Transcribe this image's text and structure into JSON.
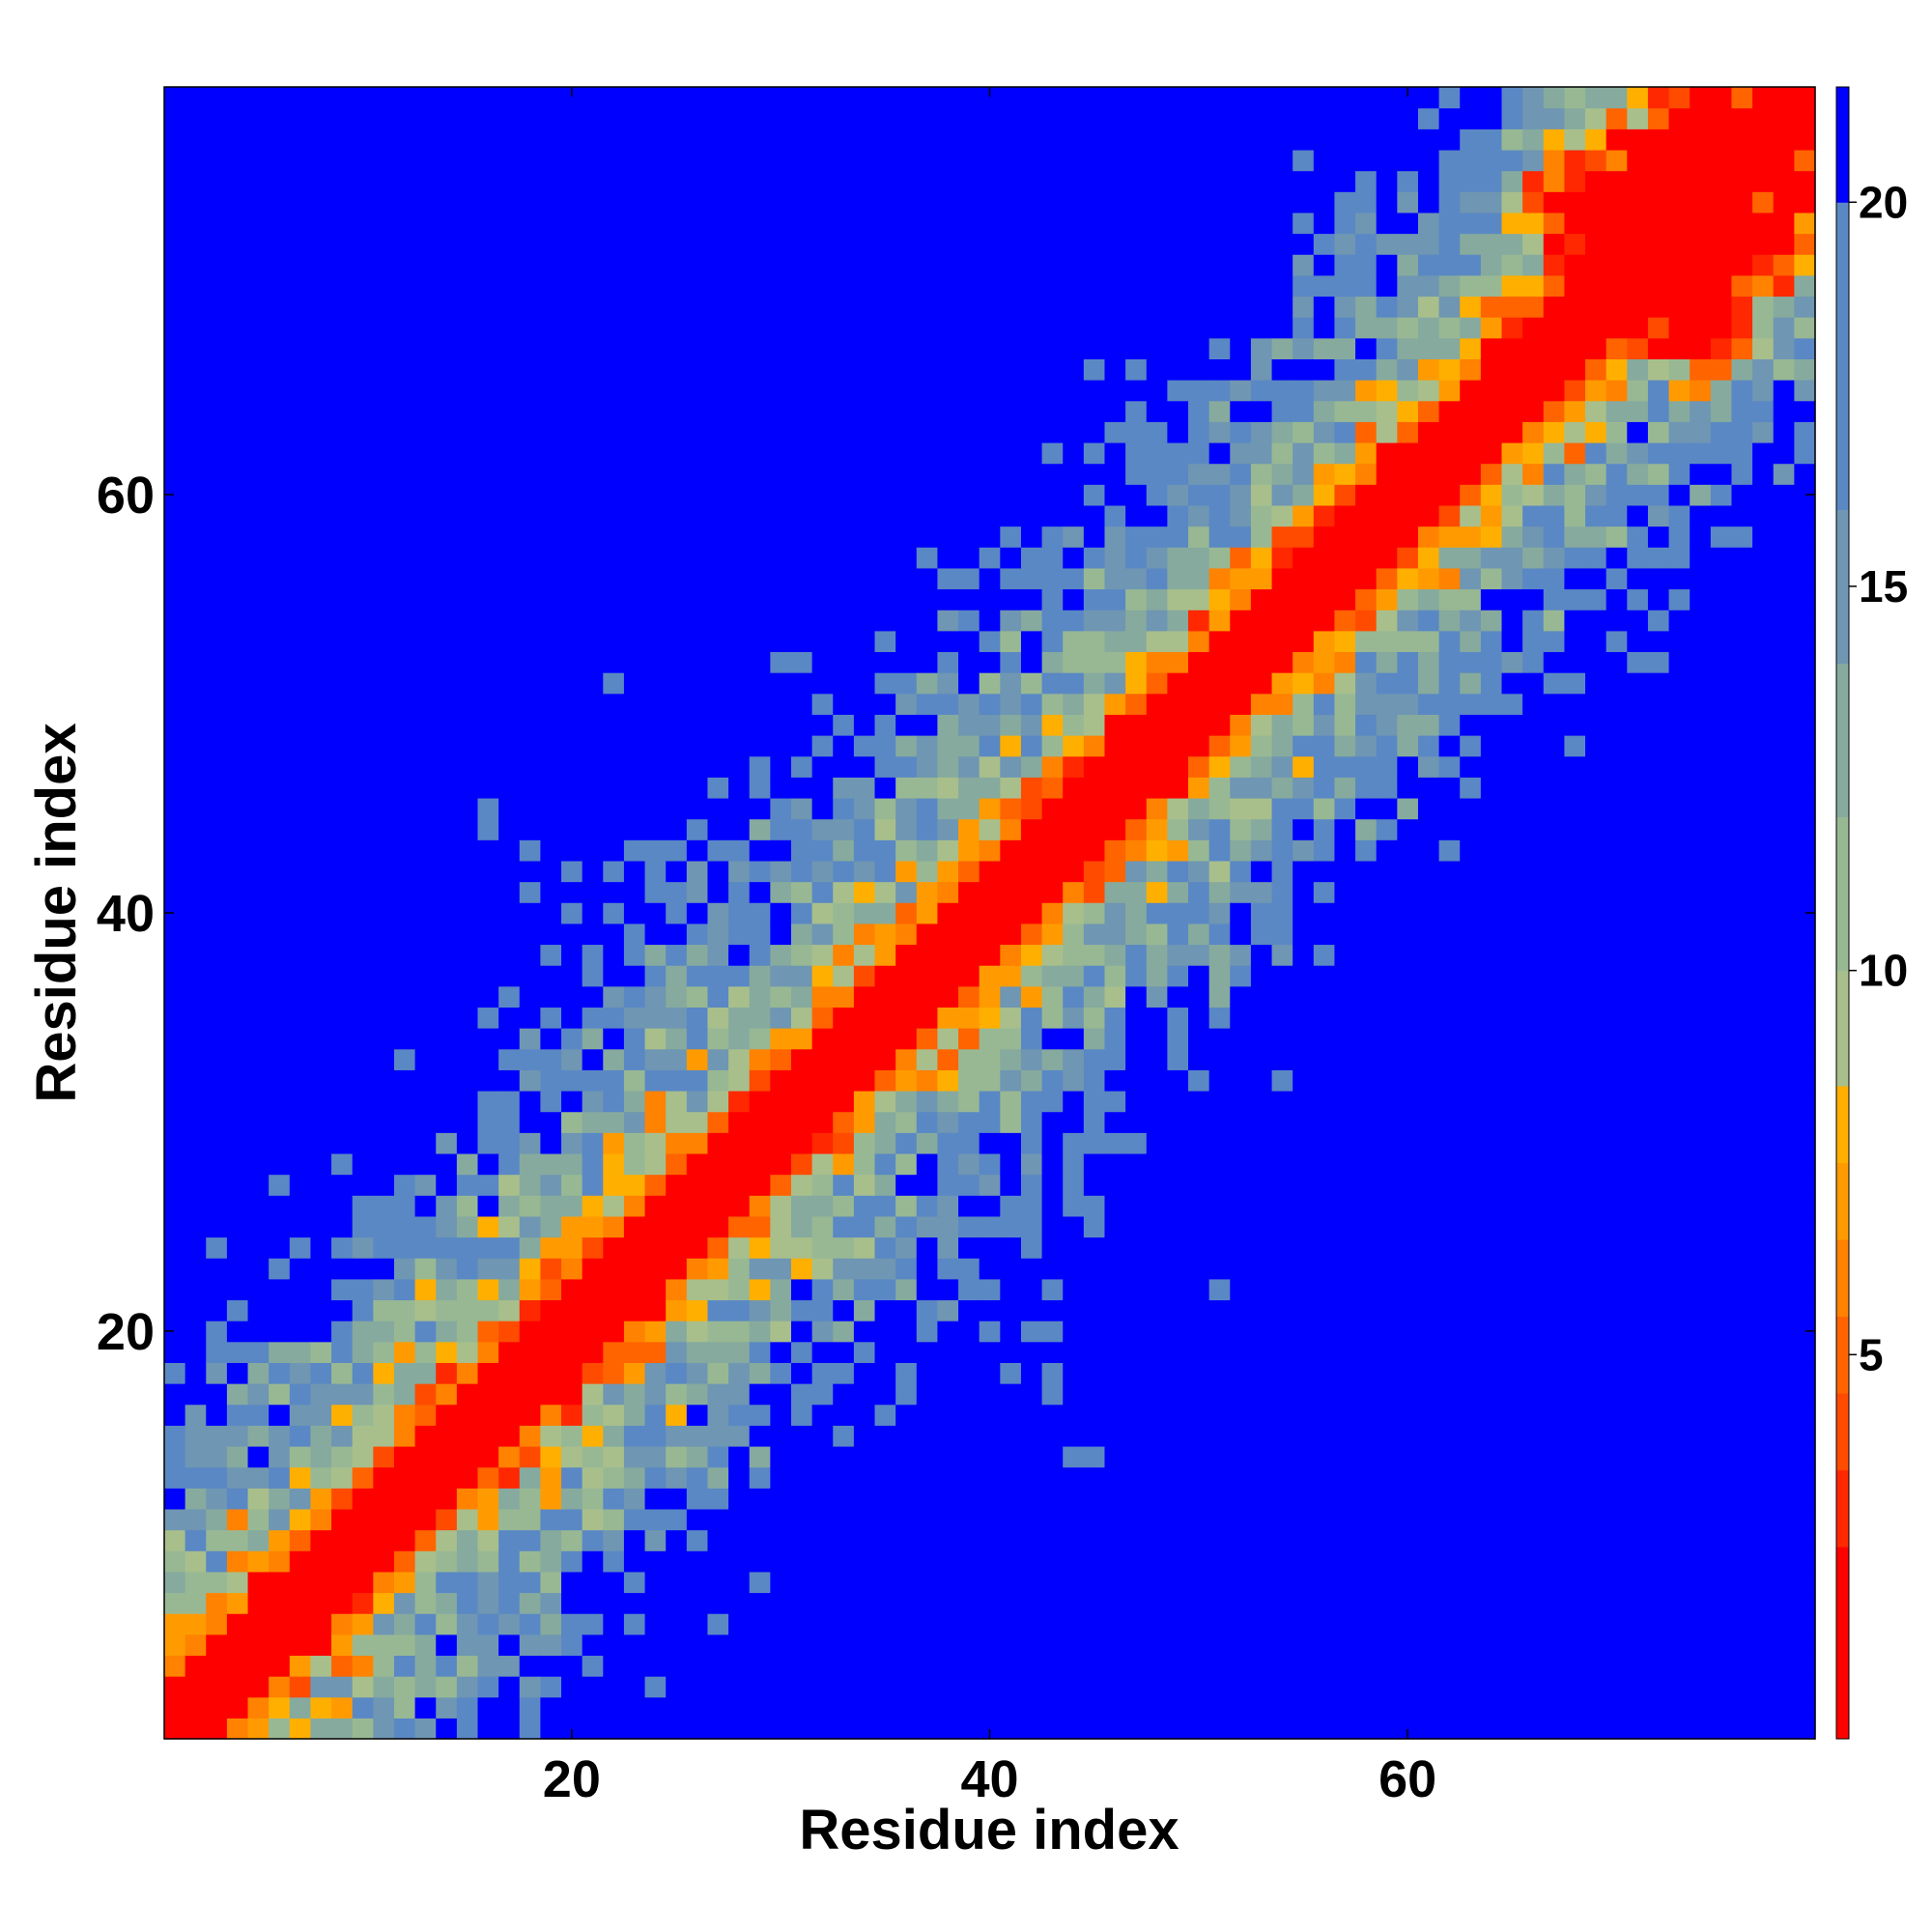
{
  "chart_data": {
    "type": "heatmap",
    "title": "",
    "xlabel": "Residue index",
    "ylabel": "Residue index",
    "n_residues": 79,
    "xlim": [
      0.5,
      79.5
    ],
    "ylim": [
      0.5,
      79.5
    ],
    "x_ticks": [
      20,
      40,
      60
    ],
    "x_tick_labels": [
      "20",
      "40",
      "60"
    ],
    "y_ticks": [
      20,
      40,
      60
    ],
    "y_tick_labels": [
      "20",
      "40",
      "60"
    ],
    "grid": false,
    "colorbar": {
      "position": "right",
      "ticks": [
        5,
        10,
        15,
        20
      ],
      "tick_labels": [
        "5",
        "10",
        "15",
        "20"
      ],
      "range": [
        0,
        21.5
      ],
      "bins": [
        {
          "max": 2.5,
          "color": "#ff0000"
        },
        {
          "max": 3.5,
          "color": "#ff2800"
        },
        {
          "max": 4.5,
          "color": "#ff4b00"
        },
        {
          "max": 5.5,
          "color": "#ff6400"
        },
        {
          "max": 6.5,
          "color": "#ff8200"
        },
        {
          "max": 7.5,
          "color": "#ff9b00"
        },
        {
          "max": 8.5,
          "color": "#ffaf00"
        },
        {
          "max": 10,
          "color": "#a8bf8c"
        },
        {
          "max": 12,
          "color": "#98b894"
        },
        {
          "max": 14,
          "color": "#86aa9e"
        },
        {
          "max": 16,
          "color": "#6f96b2"
        },
        {
          "max": 20,
          "color": "#5a88c4"
        },
        {
          "max": 999,
          "color": "#0000ff"
        }
      ]
    },
    "description": "Symmetric residue-residue distance map; red diagonal band of short distances, orange contacts near the diagonal, green/steel-blue intermediate distances, blue (>20) for distant residue pairs."
  }
}
